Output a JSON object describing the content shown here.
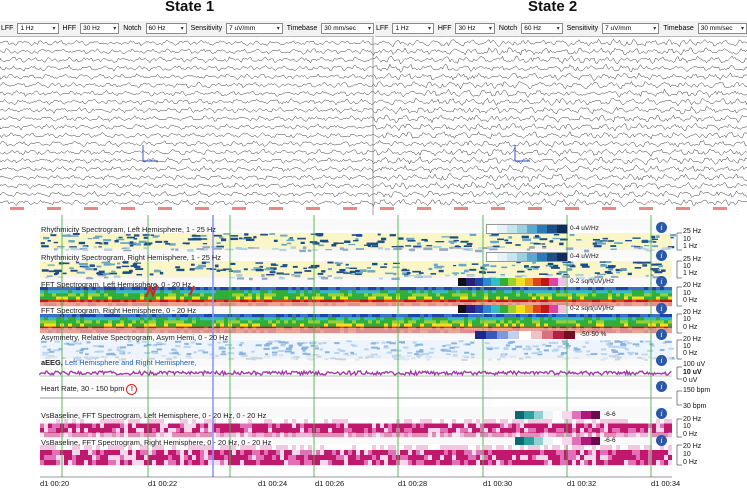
{
  "states": [
    {
      "title": "State 1",
      "toolbar": {
        "lff_label": "LFF",
        "lff_value": "1 Hz",
        "hff_label": "HFF",
        "hff_value": "30 Hz",
        "notch_label": "Notch",
        "notch_value": "60 Hz",
        "sensitivity_label": "Sensitivity",
        "sensitivity_value": "7 uV/mm",
        "timebase_label": "Timebase",
        "timebase_value": "30 mm/sec"
      }
    },
    {
      "title": "State 2",
      "toolbar": {
        "lff_label": "LFF",
        "lff_value": "1 Hz",
        "hff_label": "HFF",
        "hff_value": "30 Hz",
        "notch_label": "Notch",
        "notch_value": "60 Hz",
        "sensitivity_label": "Sensitivity",
        "sensitivity_value": "7 uV/mm",
        "timebase_label": "Timebase",
        "timebase_value": "30 mm/sec"
      }
    }
  ],
  "panels": [
    {
      "label": "Rhythmicity Spectrogram, Left Hemisphere, 1 - 25 Hz",
      "scale": "0-4 uV/Hz",
      "units": [
        "25 Hz",
        "10",
        "1 Hz"
      ]
    },
    {
      "label": "Rhythmicity Spectrogram, Right Hemisphere, 1 - 25 Hz",
      "scale": "0-4 uV/Hz",
      "units": [
        "25 Hz",
        "10",
        "1 Hz"
      ]
    },
    {
      "label": "FFT Spectrogram, Left Hemisphere, 0 - 20 Hz",
      "scale": "0-2 sqrt(uV)/Hz",
      "units": [
        "20 Hz",
        "10",
        "0 Hz"
      ]
    },
    {
      "label": "FFT Spectrogram, Right Hemisphere, 0 - 20 Hz",
      "scale": "0-2 sqrt(uV)/Hz",
      "units": [
        "20 Hz",
        "10",
        "0 Hz"
      ]
    },
    {
      "label": "Asymmetry, Relative Spectrogram, Asym Hemi, 0 - 20 Hz",
      "scale": "-50-50 %",
      "units": [
        "20 Hz",
        "10",
        "0 Hz"
      ]
    },
    {
      "label_parts": [
        "aEEG, ",
        "Left Hemisphere",
        " and ",
        "Right Hemisphere",
        ","
      ],
      "scale": "",
      "units": [
        "100 uV",
        "10 uV",
        "0 uV"
      ]
    },
    {
      "label": "Heart Rate, 30 - 150 bpm",
      "scale": "",
      "units": [
        "150 bpm",
        "30 bpm"
      ]
    },
    {
      "label": "VsBaseline, FFT Spectrogram, Left Hemisphere, 0 - 20 Hz, 0 - 20 Hz",
      "scale": "-6-6",
      "units": [
        "20 Hz",
        "10",
        "0 Hz"
      ]
    },
    {
      "label": "VsBaseline, FFT Spectrogram, Right Hemisphere, 0 - 20 Hz, 0 - 20 Hz",
      "scale": "-6-6",
      "units": [
        "20 Hz",
        "10",
        "0 Hz"
      ]
    }
  ],
  "timeline": [
    "d1 00:20",
    "d1 00:22",
    "d1 00:24",
    "d1 00:26",
    "d1 00:28",
    "d1 00:30",
    "d1 00:32",
    "d1 00:34"
  ],
  "colors": {
    "rhythm_bg": "#fbf6c8",
    "rhythm_blob": "#1c4f88",
    "fft_bg": "#c21616",
    "fft_green": "#2fae3a",
    "fft_top": "#2244aa",
    "asym": "#b8d4ee",
    "aeeg": "#a23aa8",
    "vs": "#c0186c",
    "vline": "#4ab34a",
    "cursor": "#8a9bff"
  },
  "icons": {
    "info": "info-icon",
    "alarm": "alarm-icon"
  }
}
